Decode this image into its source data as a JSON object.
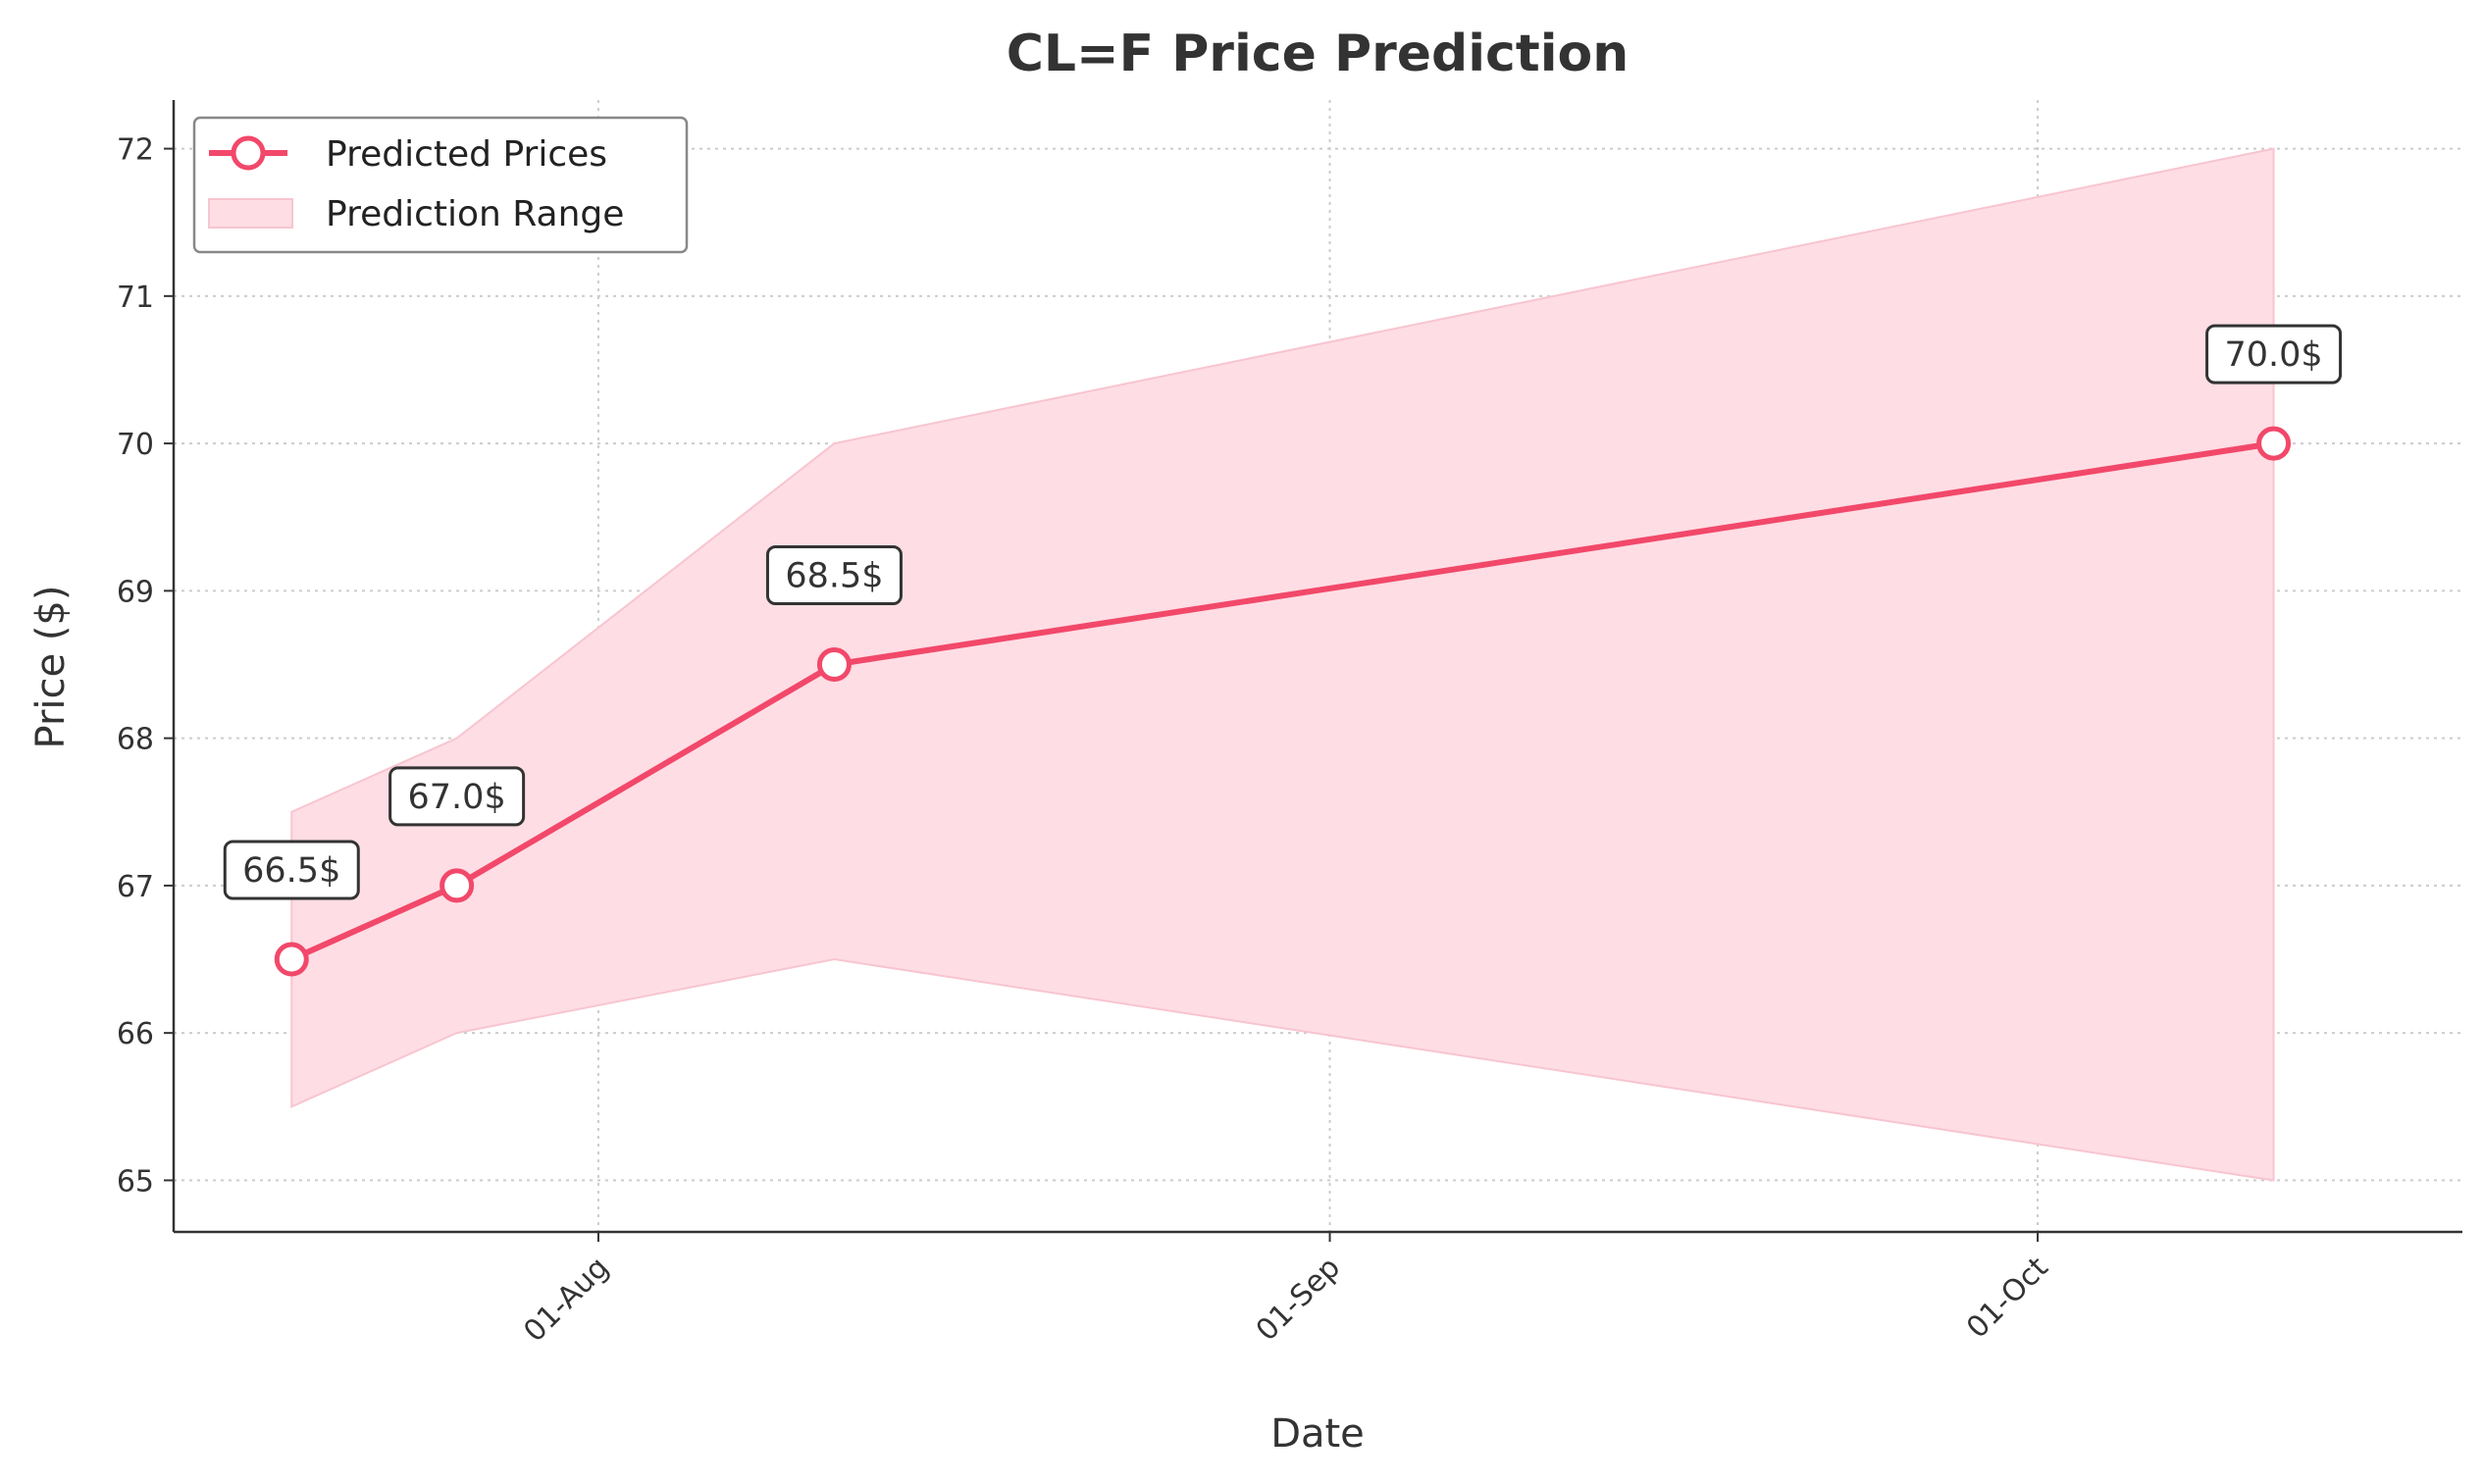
{
  "chart_data": {
    "type": "line",
    "title": "CL=F Price Prediction",
    "xlabel": "Date",
    "ylabel": "Price ($)",
    "x": [
      "2024-07-19",
      "2024-07-26",
      "2024-08-11",
      "2024-10-11"
    ],
    "series": [
      {
        "name": "Predicted Prices",
        "values": [
          66.5,
          67.0,
          68.5,
          70.0
        ],
        "labels": [
          "66.5$",
          "67.0$",
          "68.5$",
          "70.0$"
        ],
        "color": "#f2486a"
      }
    ],
    "range": {
      "name": "Prediction Range",
      "lower": [
        65.5,
        66.0,
        66.5,
        65.0
      ],
      "upper": [
        67.5,
        68.0,
        70.0,
        72.0
      ],
      "color": "#ffdde4"
    },
    "xticks": [
      {
        "date": "2024-08-01",
        "label": "01-Aug"
      },
      {
        "date": "2024-09-01",
        "label": "01-Sep"
      },
      {
        "date": "2024-10-01",
        "label": "01-Oct"
      }
    ],
    "yticks": [
      65,
      66,
      67,
      68,
      69,
      70,
      71,
      72
    ],
    "xlim": [
      "2024-07-14",
      "2024-10-19"
    ],
    "ylim": [
      64.65,
      72.33
    ],
    "grid": true,
    "legend_position": "top-left"
  }
}
